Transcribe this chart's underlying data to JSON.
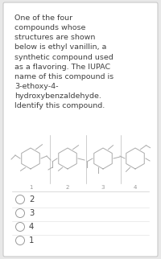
{
  "title_text": "One of the four\ncompounds whose\nstructures are shown\nbelow is ethyl vanillin, a\nsynthetic compound used\nas a flavoring. The IUPAC\nname of this compound is\n3-ethoxy-4-\nhydroxybenzaldehyde.\nIdentify this compound.",
  "options": [
    "2",
    "3",
    "4",
    "1"
  ],
  "bg_color": "#ffffff",
  "outer_bg": "#e8e8e8",
  "text_color": "#404040",
  "title_fontsize": 6.8,
  "option_fontsize": 7.2,
  "struct_color": "#aaaaaa",
  "border_color": "#c8c8c8",
  "fig_width": 2.0,
  "fig_height": 3.22
}
